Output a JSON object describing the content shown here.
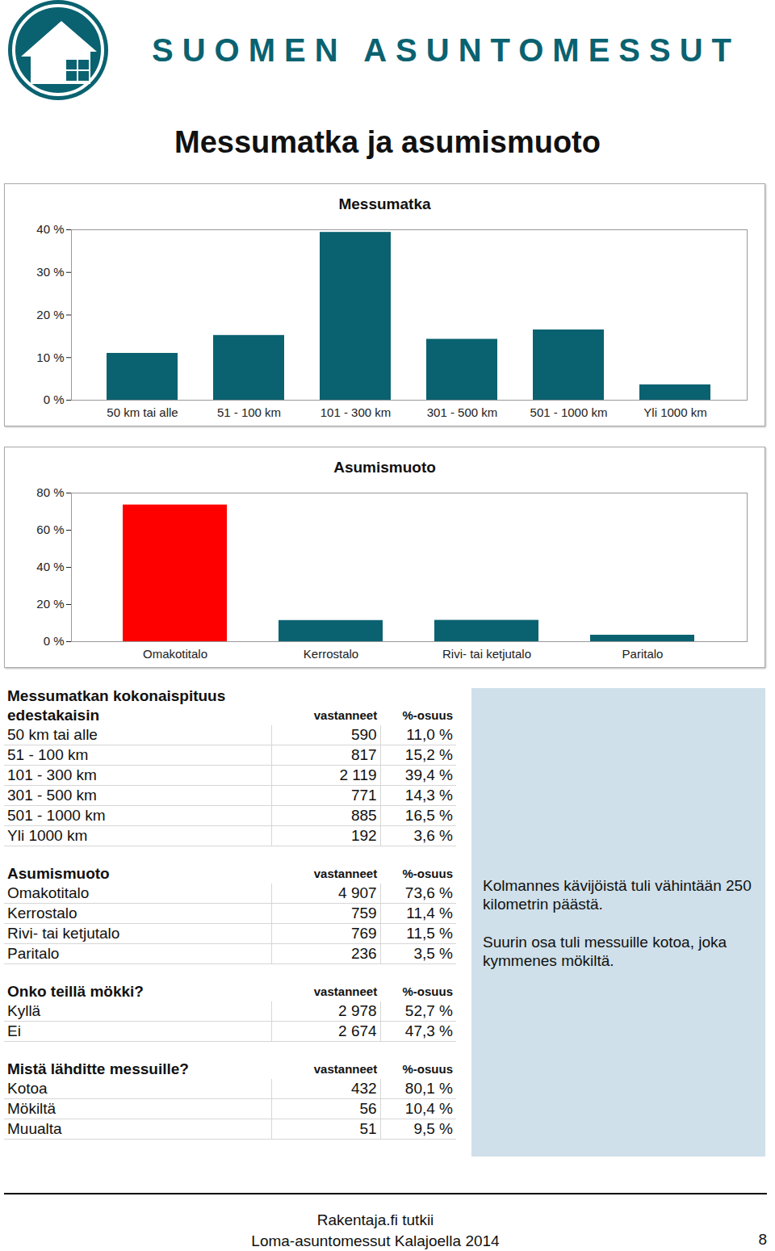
{
  "header": {
    "brand": "SUOMEN ASUNTOMESSUT",
    "title": "Messumatka ja asumismuoto"
  },
  "chart_data": [
    {
      "type": "bar",
      "title": "Messumatka",
      "categories": [
        "50 km tai alle",
        "51 - 100 km",
        "101 - 300 km",
        "301 - 500 km",
        "501 - 1000 km",
        "Yli 1000 km"
      ],
      "values": [
        11.0,
        15.2,
        39.4,
        14.3,
        16.5,
        3.6
      ],
      "color": "#0a6270",
      "ylim": [
        0,
        40
      ],
      "yticks": [
        {
          "value": 0,
          "label": "0 %"
        },
        {
          "value": 10,
          "label": "10 %"
        },
        {
          "value": 20,
          "label": "20 %"
        },
        {
          "value": 30,
          "label": "30 %"
        },
        {
          "value": 40,
          "label": "40 %"
        }
      ],
      "grid": false
    },
    {
      "type": "bar",
      "title": "Asumismuoto",
      "categories": [
        "Omakotitalo",
        "Kerrostalo",
        "Rivi- tai ketjutalo",
        "Paritalo"
      ],
      "values": [
        73.6,
        11.4,
        11.5,
        3.5
      ],
      "colors": [
        "#ff0000",
        "#0a6270",
        "#0a6270",
        "#0a6270"
      ],
      "ylim": [
        0,
        80
      ],
      "yticks": [
        {
          "value": 0,
          "label": "0 %"
        },
        {
          "value": 20,
          "label": "20 %"
        },
        {
          "value": 40,
          "label": "40 %"
        },
        {
          "value": 60,
          "label": "60 %"
        },
        {
          "value": 80,
          "label": "80 %"
        }
      ],
      "grid": false
    }
  ],
  "tables": [
    {
      "title_lines": [
        "Messumatkan kokonaispituus",
        "edestakaisin"
      ],
      "columns": [
        "vastanneet",
        "%-osuus"
      ],
      "rows": [
        [
          "50 km tai alle",
          "590",
          "11,0 %"
        ],
        [
          "51 - 100 km",
          "817",
          "15,2 %"
        ],
        [
          "101 - 300 km",
          "2 119",
          "39,4 %"
        ],
        [
          "301 - 500 km",
          "771",
          "14,3 %"
        ],
        [
          "501 - 1000 km",
          "885",
          "16,5 %"
        ],
        [
          "Yli 1000 km",
          "192",
          "3,6 %"
        ]
      ]
    },
    {
      "title_lines": [
        "Asumismuoto"
      ],
      "columns": [
        "vastanneet",
        "%-osuus"
      ],
      "rows": [
        [
          "Omakotitalo",
          "4 907",
          "73,6 %"
        ],
        [
          "Kerrostalo",
          "759",
          "11,4 %"
        ],
        [
          "Rivi- tai ketjutalo",
          "769",
          "11,5 %"
        ],
        [
          "Paritalo",
          "236",
          "3,5 %"
        ]
      ]
    },
    {
      "title_lines": [
        "Onko teillä mökki?"
      ],
      "columns": [
        "vastanneet",
        "%-osuus"
      ],
      "rows": [
        [
          "Kyllä",
          "2 978",
          "52,7 %"
        ],
        [
          "Ei",
          "2 674",
          "47,3 %"
        ]
      ]
    },
    {
      "title_lines": [
        "Mistä lähditte messuille?"
      ],
      "columns": [
        "vastanneet",
        "%-osuus"
      ],
      "rows": [
        [
          "Kotoa",
          "432",
          "80,1 %"
        ],
        [
          "Mökiltä",
          "56",
          "10,4 %"
        ],
        [
          "Muualta",
          "51",
          "9,5 %"
        ]
      ]
    }
  ],
  "notes": [
    "Kolmannes kävijöistä tuli vähintään 250 kilometrin päästä.",
    "Suurin osa tuli messuille kotoa, joka kymmenes mökiltä."
  ],
  "footer": {
    "lines": [
      "Rakentaja.fi tutkii",
      "Loma-asuntomessut Kalajoella 2014"
    ],
    "page": "8"
  }
}
